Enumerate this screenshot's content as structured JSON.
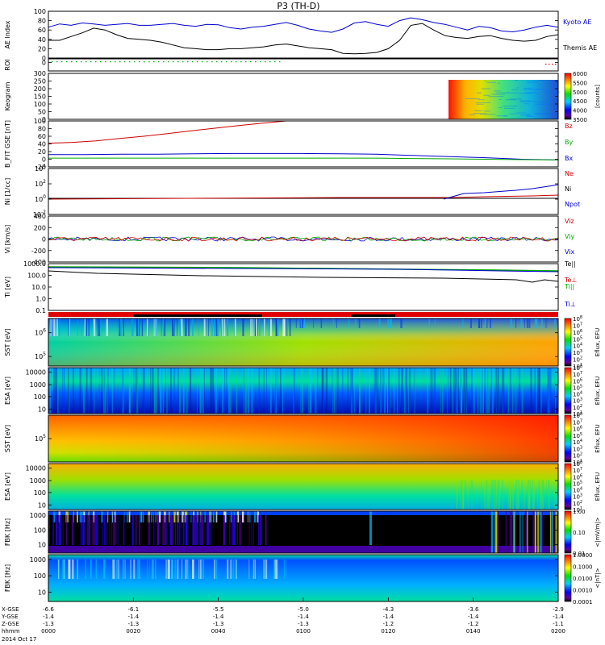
{
  "title": "P3 (TH-D)",
  "chart_data": {
    "type": "multi-panel",
    "title": "P3 (TH-D)",
    "x": {
      "time_ticks": [
        "0000",
        "0020",
        "0040",
        "0100",
        "0120",
        "0140",
        "0200"
      ],
      "date_label": "2014 Oct 17",
      "rows": [
        {
          "label": "X-GSE",
          "values": [
            "-6.6",
            "-6.1",
            "-5.5",
            "-5.0",
            "-4.3",
            "-3.6",
            "-2.9"
          ]
        },
        {
          "label": "Y-GSE",
          "values": [
            "-1.4",
            "-1.4",
            "-1.4",
            "-1.4",
            "-1.4",
            "-1.4",
            "-1.4"
          ]
        },
        {
          "label": "Z-GSE",
          "values": [
            "-1.3",
            "-1.3",
            "-1.3",
            "-1.3",
            "-1.2",
            "-1.2",
            "-1.1"
          ]
        },
        {
          "label": "hhmm",
          "values": [
            "0000",
            "0020",
            "0040",
            "0100",
            "0120",
            "0140",
            "0200"
          ]
        }
      ]
    },
    "panels": [
      {
        "name": "ae",
        "type": "line",
        "ylabel": "AE Index",
        "ylim": [
          0,
          100
        ],
        "yticks": [
          "0",
          "20",
          "40",
          "60",
          "80",
          "100"
        ],
        "series": [
          {
            "name": "Kyoto AE",
            "color": "#0000cc",
            "values": [
              66,
              73,
              70,
              75,
              73,
              70,
              72,
              74,
              70,
              70,
              72,
              74,
              70,
              68,
              72,
              71,
              65,
              62,
              66,
              68,
              72,
              76,
              70,
              62,
              58,
              55,
              62,
              75,
              78,
              72,
              68,
              80,
              86,
              82,
              76,
              72,
              66,
              60,
              68,
              65,
              58,
              56,
              60,
              66,
              70,
              66
            ]
          },
          {
            "name": "Themis AE",
            "color": "#000000",
            "values": [
              38,
              38,
              46,
              54,
              64,
              60,
              50,
              42,
              40,
              38,
              34,
              28,
              22,
              20,
              18,
              18,
              20,
              20,
              22,
              24,
              28,
              30,
              26,
              22,
              20,
              18,
              10,
              9,
              10,
              12,
              20,
              38,
              70,
              74,
              60,
              48,
              44,
              42,
              46,
              48,
              42,
              38,
              36,
              38,
              46,
              50
            ]
          }
        ]
      },
      {
        "name": "roi",
        "ylabel": "ROI",
        "yticks": [
          "0"
        ]
      },
      {
        "name": "keogram",
        "type": "heatmap",
        "ylabel": "Keogram",
        "ylim": [
          0,
          300
        ],
        "yticks": [
          "0",
          "50",
          "100",
          "150",
          "200",
          "250",
          "300"
        ],
        "colorbar": {
          "label": "[counts]",
          "ticks": [
            "3500",
            "4000",
            "4500",
            "5000",
            "5500",
            "6000"
          ]
        }
      },
      {
        "name": "bfield",
        "type": "line",
        "ylabel": "B_FIT GSE [nT]",
        "ylim": [
          -20,
          100
        ],
        "yticks": [
          "-20",
          "0",
          "20",
          "40",
          "60",
          "80",
          "100"
        ],
        "series": [
          {
            "name": "Bz",
            "color": "#cc0000",
            "values": [
              42,
              44,
              48,
              54,
              60,
              67,
              74,
              81,
              88,
              94,
              100
            ]
          },
          {
            "name": "Bx",
            "color": "#0000cc",
            "values": [
              12,
              12,
              13,
              13,
              14,
              15,
              15,
              15,
              14,
              13,
              10,
              7,
              4,
              0,
              -2
            ]
          },
          {
            "name": "By",
            "color": "#00aa00",
            "values": [
              3,
              3,
              3,
              3,
              3,
              3,
              3,
              3,
              3,
              3,
              2,
              1,
              0,
              -1,
              -2
            ]
          }
        ]
      },
      {
        "name": "density",
        "type": "line",
        "ylabel": "Ni [1/cc]",
        "yticks": [
          "10^-2",
          "10^0",
          "10^2",
          "10^4"
        ],
        "legend": [
          "Ne",
          "Ni",
          "Npot"
        ]
      },
      {
        "name": "velocity",
        "type": "line",
        "ylabel": "Vi [km/s]",
        "ylim": [
          -400,
          400
        ],
        "yticks": [
          "-400",
          "-200",
          "0",
          "200",
          "400"
        ],
        "legend": [
          "Viz",
          "Viy",
          "Vix"
        ]
      },
      {
        "name": "temperature",
        "type": "line",
        "ylabel": "Ti [eV]",
        "yticks": [
          "0.1",
          "1.0",
          "10.0",
          "100.0",
          "1000.0"
        ],
        "legend": [
          "Te||",
          "Te⊥",
          "Ti||",
          "Ti⊥"
        ]
      },
      {
        "name": "sst-e",
        "type": "heatmap",
        "ylabel": "SST [eV]",
        "yticks": [
          "10^5",
          "10^6"
        ],
        "colorbar": {
          "label": "Eflux, EFU",
          "ticks": [
            "10^1",
            "10^2",
            "10^3",
            "10^4",
            "10^5",
            "10^6",
            "10^7",
            "10^8"
          ]
        }
      },
      {
        "name": "esa-e",
        "type": "heatmap",
        "ylabel": "ESA [eV]",
        "yticks": [
          "10",
          "100",
          "1000",
          "10000"
        ],
        "colorbar": {
          "label": "Eflux, EFU",
          "ticks": [
            "10^1",
            "10^2",
            "10^3",
            "10^4",
            "10^5",
            "10^6",
            "10^7",
            "10^8"
          ]
        }
      },
      {
        "name": "sst-i",
        "type": "heatmap",
        "ylabel": "SST [eV]",
        "yticks": [
          "10^5"
        ],
        "colorbar": {
          "label": "Eflux, EFU",
          "ticks": [
            "10^1",
            "10^2",
            "10^3",
            "10^4",
            "10^5",
            "10^6",
            "10^7",
            "10^8"
          ]
        }
      },
      {
        "name": "esa-i",
        "type": "heatmap",
        "ylabel": "ESA [eV]",
        "yticks": [
          "10",
          "100",
          "1000",
          "10000"
        ],
        "colorbar": {
          "label": "Eflux, EFU",
          "ticks": [
            "10^1",
            "10^2",
            "10^3",
            "10^4",
            "10^5",
            "10^6",
            "10^7",
            "10^8"
          ]
        }
      },
      {
        "name": "fbk-e",
        "type": "heatmap",
        "ylabel": "FBK [Hz]",
        "yticks": [
          "10",
          "100",
          "1000"
        ],
        "colorbar": {
          "label": "<|mV/m|>",
          "ticks": [
            "0.01",
            "0.10",
            "1.00"
          ]
        }
      },
      {
        "name": "fbk-b",
        "type": "heatmap",
        "ylabel": "FBK [Hz]",
        "yticks": [
          "10",
          "100",
          "1000"
        ],
        "colorbar": {
          "label": "<|nT|>",
          "ticks": [
            "0.0001",
            "0.0010",
            "0.0100",
            "0.1000",
            "1.0000"
          ]
        }
      }
    ]
  }
}
